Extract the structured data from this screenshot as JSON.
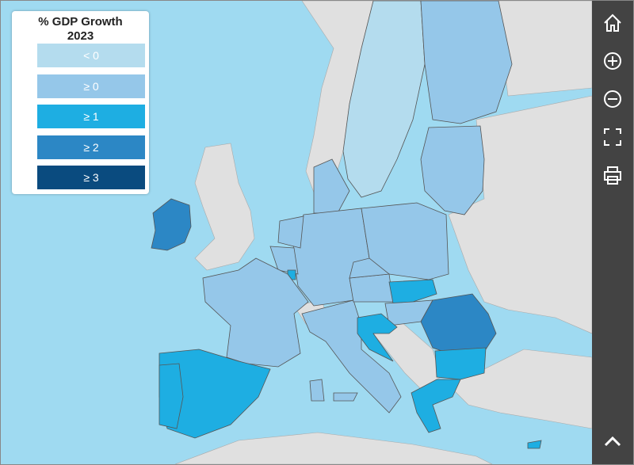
{
  "legend": {
    "title": [
      "% GDP Growth",
      "2023"
    ],
    "items": [
      {
        "label": "< 0",
        "color": "#b4dcee"
      },
      {
        "label": "≥ 0",
        "color": "#95c7e9"
      },
      {
        "label": "≥ 1",
        "color": "#1eaee2"
      },
      {
        "label": "≥ 2",
        "color": "#2c87c5"
      },
      {
        "label": "≥ 3",
        "color": "#0a4b7f"
      }
    ]
  }
}
